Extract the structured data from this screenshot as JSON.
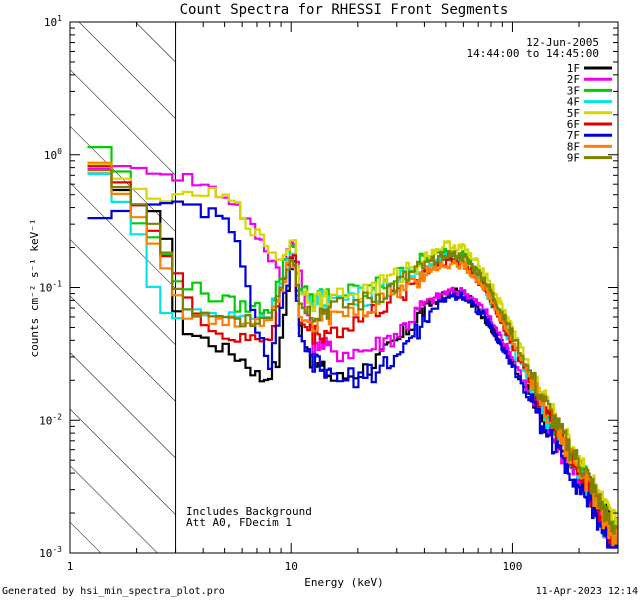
{
  "chart_data": {
    "type": "line",
    "title": "Count Spectra for RHESSI Front Segments",
    "xlabel": "Energy (keV)",
    "ylabel": "counts cm⁻² s⁻¹ keV⁻¹",
    "xscale": "log",
    "yscale": "log",
    "xlim": [
      1,
      300
    ],
    "ylim": [
      0.001,
      10
    ],
    "x_tick_labels": [
      {
        "value": 1,
        "label": "1"
      },
      {
        "value": 10,
        "label": "10"
      },
      {
        "value": 100,
        "label": "100"
      }
    ],
    "y_tick_labels": [
      {
        "value": 0.001,
        "base": "10",
        "exp": "-3"
      },
      {
        "value": 0.01,
        "base": "10",
        "exp": "-2"
      },
      {
        "value": 0.1,
        "base": "10",
        "exp": "-1"
      },
      {
        "value": 1,
        "base": "10",
        "exp": "0"
      },
      {
        "value": 10,
        "base": "10",
        "exp": "1"
      }
    ],
    "hatched_region": {
      "x_min": 1,
      "x_max": 3,
      "style": "diagonal hatch"
    },
    "annotations": {
      "date": "12-Jun-2005",
      "time_range": "14:44:00 to 14:45:00",
      "background_note": "Includes Background",
      "attenuator_note": "Att A0, FDecim 1"
    },
    "legend_position": "top-right",
    "series": [
      {
        "name": "1F",
        "color": "#000000",
        "points": [
          [
            1.25,
            0.78
          ],
          [
            1.6,
            0.55
          ],
          [
            2.0,
            0.45
          ],
          [
            2.6,
            0.35
          ],
          [
            3.2,
            0.048
          ],
          [
            4.5,
            0.038
          ],
          [
            6,
            0.029
          ],
          [
            7.5,
            0.02
          ],
          [
            8.8,
            0.028
          ],
          [
            10.2,
            0.21
          ],
          [
            11,
            0.05
          ],
          [
            12.5,
            0.028
          ],
          [
            16,
            0.02
          ],
          [
            22,
            0.025
          ],
          [
            30,
            0.038
          ],
          [
            40,
            0.07
          ],
          [
            50,
            0.09
          ],
          [
            60,
            0.092
          ],
          [
            75,
            0.06
          ],
          [
            100,
            0.028
          ],
          [
            130,
            0.012
          ],
          [
            170,
            0.006
          ],
          [
            220,
            0.0035
          ],
          [
            280,
            0.0016
          ]
        ]
      },
      {
        "name": "2F",
        "color": "#ee00ee",
        "points": [
          [
            1.25,
            0.82
          ],
          [
            1.6,
            0.8
          ],
          [
            2.0,
            0.78
          ],
          [
            2.6,
            0.74
          ],
          [
            3.2,
            0.7
          ],
          [
            4.0,
            0.6
          ],
          [
            5.5,
            0.45
          ],
          [
            7,
            0.25
          ],
          [
            9,
            0.13
          ],
          [
            10.2,
            0.24
          ],
          [
            11,
            0.12
          ],
          [
            12.5,
            0.04
          ],
          [
            16,
            0.033
          ],
          [
            22,
            0.034
          ],
          [
            30,
            0.045
          ],
          [
            40,
            0.075
          ],
          [
            50,
            0.092
          ],
          [
            60,
            0.094
          ],
          [
            75,
            0.068
          ],
          [
            100,
            0.03
          ],
          [
            130,
            0.012
          ],
          [
            170,
            0.0055
          ],
          [
            220,
            0.0028
          ],
          [
            280,
            0.0012
          ]
        ]
      },
      {
        "name": "3F",
        "color": "#00cc00",
        "points": [
          [
            1.25,
            1.25
          ],
          [
            1.6,
            1.0
          ],
          [
            2.0,
            0.32
          ],
          [
            2.6,
            0.2
          ],
          [
            3.2,
            0.11
          ],
          [
            4.5,
            0.085
          ],
          [
            6,
            0.072
          ],
          [
            8,
            0.07
          ],
          [
            10.2,
            0.23
          ],
          [
            11,
            0.1
          ],
          [
            12.5,
            0.085
          ],
          [
            16,
            0.088
          ],
          [
            22,
            0.095
          ],
          [
            30,
            0.12
          ],
          [
            40,
            0.16
          ],
          [
            50,
            0.19
          ],
          [
            60,
            0.18
          ],
          [
            75,
            0.11
          ],
          [
            100,
            0.04
          ],
          [
            130,
            0.015
          ],
          [
            170,
            0.007
          ],
          [
            220,
            0.0035
          ],
          [
            280,
            0.0015
          ]
        ]
      },
      {
        "name": "4F",
        "color": "#00e5e5",
        "points": [
          [
            1.25,
            0.85
          ],
          [
            1.6,
            0.5
          ],
          [
            2.0,
            0.3
          ],
          [
            2.6,
            0.06
          ],
          [
            3.2,
            0.068
          ],
          [
            4.5,
            0.063
          ],
          [
            6,
            0.06
          ],
          [
            8,
            0.062
          ],
          [
            10.2,
            0.2
          ],
          [
            11,
            0.085
          ],
          [
            12.5,
            0.08
          ],
          [
            16,
            0.082
          ],
          [
            22,
            0.088
          ],
          [
            30,
            0.11
          ],
          [
            40,
            0.14
          ],
          [
            50,
            0.17
          ],
          [
            60,
            0.16
          ],
          [
            75,
            0.1
          ],
          [
            100,
            0.036
          ],
          [
            130,
            0.014
          ],
          [
            170,
            0.0065
          ],
          [
            220,
            0.003
          ],
          [
            280,
            0.0012
          ]
        ]
      },
      {
        "name": "5F",
        "color": "#d6d600",
        "points": [
          [
            1.25,
            0.88
          ],
          [
            1.6,
            0.7
          ],
          [
            2.0,
            0.55
          ],
          [
            2.6,
            0.46
          ],
          [
            3.2,
            0.45
          ],
          [
            4.0,
            0.53
          ],
          [
            5.5,
            0.44
          ],
          [
            7,
            0.25
          ],
          [
            9,
            0.16
          ],
          [
            10.2,
            0.25
          ],
          [
            11,
            0.1
          ],
          [
            12.5,
            0.08
          ],
          [
            16,
            0.085
          ],
          [
            22,
            0.095
          ],
          [
            30,
            0.12
          ],
          [
            40,
            0.17
          ],
          [
            50,
            0.21
          ],
          [
            60,
            0.2
          ],
          [
            75,
            0.13
          ],
          [
            100,
            0.05
          ],
          [
            130,
            0.018
          ],
          [
            170,
            0.008
          ],
          [
            220,
            0.004
          ],
          [
            280,
            0.0018
          ]
        ]
      },
      {
        "name": "6F",
        "color": "#e00000",
        "points": [
          [
            1.25,
            0.95
          ],
          [
            1.6,
            0.7
          ],
          [
            2.0,
            0.45
          ],
          [
            2.6,
            0.2
          ],
          [
            3.2,
            0.1
          ],
          [
            4.5,
            0.045
          ],
          [
            6,
            0.04
          ],
          [
            8,
            0.042
          ],
          [
            10.2,
            0.2
          ],
          [
            11,
            0.055
          ],
          [
            12.5,
            0.045
          ],
          [
            16,
            0.047
          ],
          [
            22,
            0.06
          ],
          [
            30,
            0.085
          ],
          [
            40,
            0.13
          ],
          [
            50,
            0.16
          ],
          [
            60,
            0.155
          ],
          [
            75,
            0.1
          ],
          [
            100,
            0.038
          ],
          [
            130,
            0.015
          ],
          [
            170,
            0.0065
          ],
          [
            220,
            0.003
          ],
          [
            280,
            0.0013
          ]
        ]
      },
      {
        "name": "7F",
        "color": "#0000dd",
        "points": [
          [
            1.25,
            0.33
          ],
          [
            1.6,
            0.36
          ],
          [
            2.0,
            0.44
          ],
          [
            2.6,
            0.42
          ],
          [
            3.2,
            0.4
          ],
          [
            4.2,
            0.38
          ],
          [
            5.5,
            0.28
          ],
          [
            6.5,
            0.08
          ],
          [
            8,
            0.025
          ],
          [
            10.2,
            0.17
          ],
          [
            11,
            0.04
          ],
          [
            12.5,
            0.028
          ],
          [
            16,
            0.02
          ],
          [
            22,
            0.022
          ],
          [
            30,
            0.03
          ],
          [
            40,
            0.055
          ],
          [
            50,
            0.085
          ],
          [
            60,
            0.088
          ],
          [
            75,
            0.06
          ],
          [
            100,
            0.026
          ],
          [
            130,
            0.011
          ],
          [
            170,
            0.005
          ],
          [
            220,
            0.0025
          ],
          [
            280,
            0.0011
          ]
        ]
      },
      {
        "name": "8F",
        "color": "#ff8000",
        "points": [
          [
            1.25,
            1.05
          ],
          [
            1.6,
            0.6
          ],
          [
            2.0,
            0.35
          ],
          [
            2.6,
            0.18
          ],
          [
            3.2,
            0.065
          ],
          [
            4.5,
            0.055
          ],
          [
            6,
            0.055
          ],
          [
            8,
            0.058
          ],
          [
            10.2,
            0.19
          ],
          [
            11,
            0.065
          ],
          [
            12.5,
            0.055
          ],
          [
            16,
            0.06
          ],
          [
            22,
            0.07
          ],
          [
            30,
            0.095
          ],
          [
            40,
            0.13
          ],
          [
            50,
            0.15
          ],
          [
            60,
            0.15
          ],
          [
            75,
            0.1
          ],
          [
            100,
            0.04
          ],
          [
            130,
            0.016
          ],
          [
            170,
            0.007
          ],
          [
            220,
            0.0033
          ],
          [
            280,
            0.0014
          ]
        ]
      },
      {
        "name": "9F",
        "color": "#808000",
        "points": [
          [
            1.25,
            0.8
          ],
          [
            1.6,
            0.65
          ],
          [
            2.0,
            0.45
          ],
          [
            2.6,
            0.24
          ],
          [
            3.2,
            0.07
          ],
          [
            4.5,
            0.056
          ],
          [
            6,
            0.057
          ],
          [
            8,
            0.06
          ],
          [
            10.2,
            0.19
          ],
          [
            11,
            0.075
          ],
          [
            12.5,
            0.065
          ],
          [
            16,
            0.07
          ],
          [
            22,
            0.08
          ],
          [
            30,
            0.105
          ],
          [
            40,
            0.145
          ],
          [
            50,
            0.18
          ],
          [
            60,
            0.17
          ],
          [
            75,
            0.115
          ],
          [
            100,
            0.045
          ],
          [
            130,
            0.017
          ],
          [
            170,
            0.0075
          ],
          [
            220,
            0.0037
          ],
          [
            280,
            0.0016
          ]
        ]
      }
    ]
  },
  "footer": {
    "left": "Generated by hsi_min_spectra_plot.pro",
    "right": "11-Apr-2023 12:14"
  }
}
